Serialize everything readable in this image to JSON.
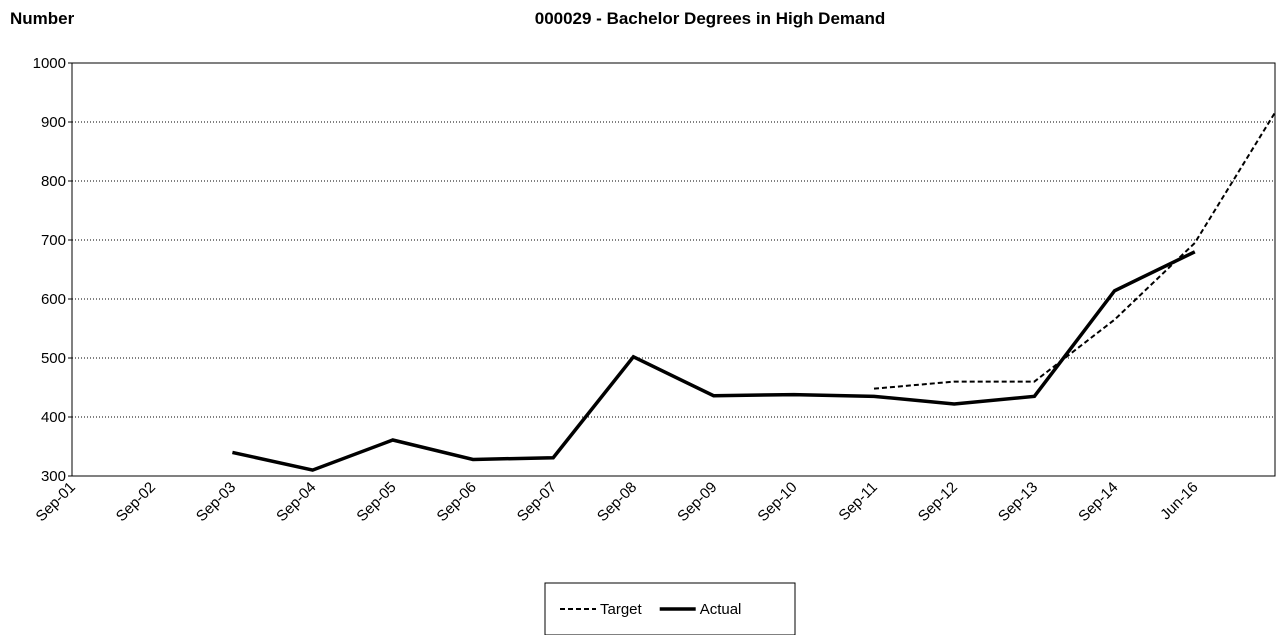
{
  "chart_data": {
    "type": "line",
    "title": "000029 - Bachelor Degrees in High Demand",
    "y_label": "Number",
    "categories": [
      "Sep-01",
      "Sep-02",
      "Sep-03",
      "Sep-04",
      "Sep-05",
      "Sep-06",
      "Sep-07",
      "Sep-08",
      "Sep-09",
      "Sep-10",
      "Sep-11",
      "Sep-12",
      "Sep-13",
      "Sep-14",
      "Jun-16",
      null
    ],
    "series": [
      {
        "name": "Target",
        "color": "#000000",
        "dash": true,
        "values": [
          null,
          null,
          null,
          null,
          null,
          null,
          null,
          null,
          null,
          null,
          448,
          460,
          460,
          565,
          695,
          916
        ]
      },
      {
        "name": "Actual",
        "color": "#000000",
        "dash": false,
        "values": [
          null,
          null,
          340,
          310,
          361,
          328,
          331,
          502,
          436,
          438,
          435,
          422,
          435,
          614,
          680,
          null
        ]
      }
    ],
    "ylim": [
      300,
      1000
    ],
    "yticks": [
      300,
      400,
      500,
      600,
      700,
      800,
      900,
      1000
    ],
    "grid": true,
    "legend": "bottom"
  }
}
